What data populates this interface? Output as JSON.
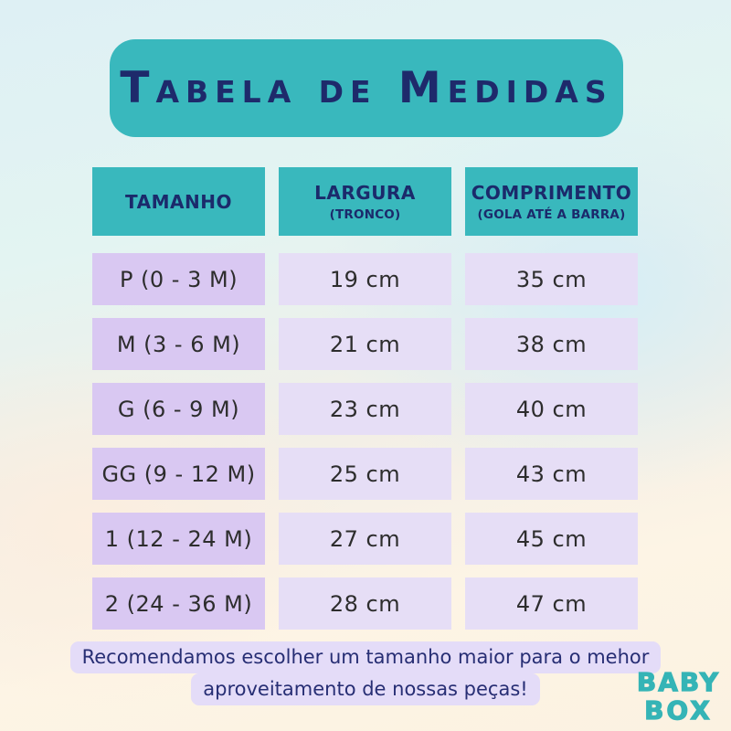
{
  "title": "Tabela de Medidas",
  "chart_data": {
    "type": "table",
    "title": "Tabela de Medidas",
    "columns": [
      "TAMANHO",
      "LARGURA (TRONCO)",
      "COMPRIMENTO (GOLA ATÉ A BARRA)"
    ],
    "header": [
      {
        "label": "TAMANHO",
        "sublabel": ""
      },
      {
        "label": "LARGURA",
        "sublabel": "(TRONCO)"
      },
      {
        "label": "COMPRIMENTO",
        "sublabel": "(GOLA ATÉ A BARRA)"
      }
    ],
    "rows": [
      {
        "size": "P (0 - 3 M)",
        "largura": "19 cm",
        "comprimento": "35 cm"
      },
      {
        "size": "M (3 - 6 M)",
        "largura": "21 cm",
        "comprimento": "38 cm"
      },
      {
        "size": "G (6 - 9 M)",
        "largura": "23 cm",
        "comprimento": "40 cm"
      },
      {
        "size": "GG (9 - 12 M)",
        "largura": "25 cm",
        "comprimento": "43 cm"
      },
      {
        "size": "1 (12 - 24 M)",
        "largura": "27 cm",
        "comprimento": "45 cm"
      },
      {
        "size": "2 (24 - 36 M)",
        "largura": "28 cm",
        "comprimento": "47 cm"
      }
    ]
  },
  "note": {
    "line1": "Recomendamos escolher um tamanho maior para o mehor",
    "line2": "aproveitamento de nossas peças!"
  },
  "logo": {
    "line1": "BABY",
    "line2": "BOX"
  },
  "colors": {
    "teal": "#39b8bd",
    "navy": "#1e2a6b",
    "lavender_dark": "#d9c8f2",
    "lavender_light": "#e6def6",
    "note_bg": "#e4dcf8",
    "note_text": "#272e74",
    "cell_text": "#2d2d2d",
    "logo_teal": "#35b4b6",
    "bg_top_blue": "#def0f4",
    "bg_bottom_cream": "#fbf2e1"
  }
}
